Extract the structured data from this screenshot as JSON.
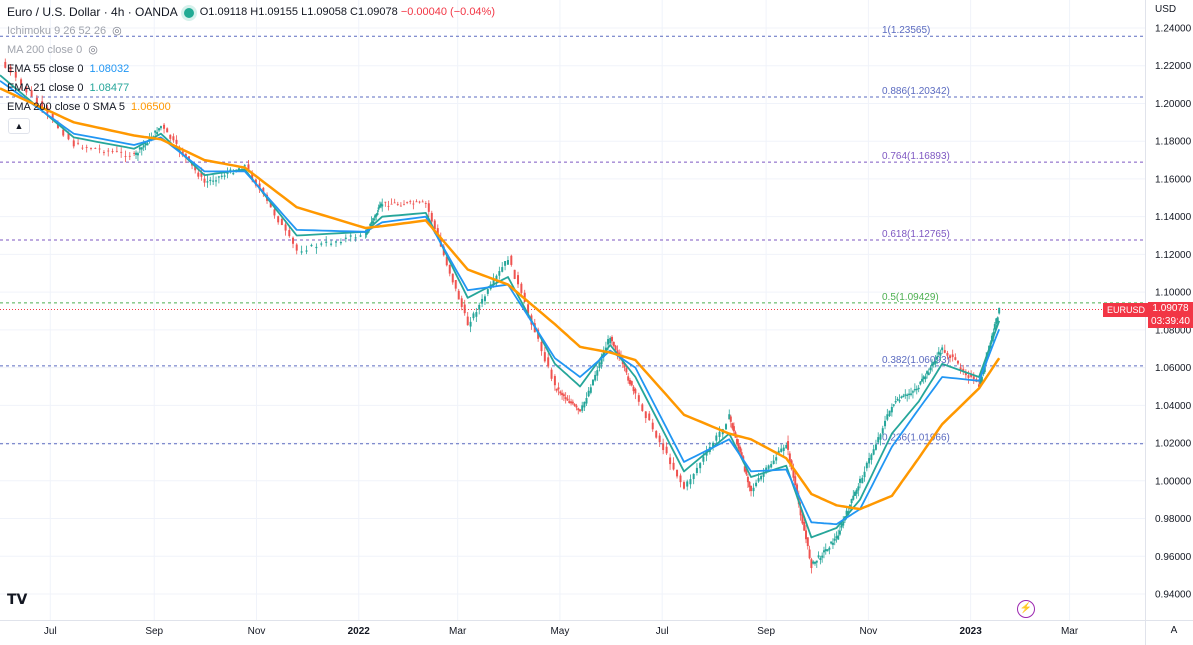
{
  "header": {
    "symbol_title": "Euro / U.S. Dollar · 4h · OANDA",
    "open": "O1.09118",
    "high": "H1.09155",
    "low": "L1.09058",
    "close": "C1.09078",
    "change": "−0.00040 (−0.04%)"
  },
  "indicators": [
    {
      "label": "Ichimoku 9 26 52 26",
      "value": "",
      "hidden": true
    },
    {
      "label": "MA 200 close 0",
      "value": "",
      "hidden": true
    },
    {
      "label": "EMA 55 close 0",
      "value": "1.08032",
      "color": "#2196f3"
    },
    {
      "label": "EMA 21 close 0",
      "value": "1.08477",
      "color": "#26a69a"
    },
    {
      "label": "EMA 200 close 0 SMA 5",
      "value": "1.06500",
      "color": "#ff9800"
    }
  ],
  "price_axis": {
    "currency": "USD",
    "ticks": [
      "1.24000",
      "1.22000",
      "1.20000",
      "1.18000",
      "1.16000",
      "1.14000",
      "1.12000",
      "1.10000",
      "1.08000",
      "1.06000",
      "1.04000",
      "1.02000",
      "1.00000",
      "0.98000",
      "0.96000",
      "0.94000"
    ]
  },
  "time_axis": {
    "labels": [
      "Jul",
      "Sep",
      "Nov",
      "2022",
      "Mar",
      "May",
      "Jul",
      "Sep",
      "Nov",
      "2023",
      "Mar"
    ]
  },
  "current_price": {
    "symbol": "EURUSD",
    "price": "1.09078",
    "countdown": "03:39:40",
    "color": "#f23645"
  },
  "fib_levels": [
    {
      "label": "1(1.23565)",
      "price": 1.23565,
      "color": "#5b6bc0"
    },
    {
      "label": "0.886(1.20342)",
      "price": 1.20342,
      "color": "#5b6bc0"
    },
    {
      "label": "0.764(1.16893)",
      "price": 1.16893,
      "color": "#7e57c2"
    },
    {
      "label": "0.618(1.12765)",
      "price": 1.12765,
      "color": "#7e57c2"
    },
    {
      "label": "0.5(1.09429)",
      "price": 1.09429,
      "color": "#4caf50"
    },
    {
      "label": "0.382(1.06093)",
      "price": 1.06093,
      "color": "#5b6bc0"
    },
    {
      "label": "0.236(1.01966)",
      "price": 1.01966,
      "color": "#5b6bc0"
    }
  ],
  "chart_data": {
    "type": "line",
    "ylim": [
      0.93,
      1.25
    ],
    "x": [
      "2021-06-01",
      "2021-07-15",
      "2021-08-20",
      "2021-09-05",
      "2021-10-01",
      "2021-10-25",
      "2021-11-25",
      "2022-01-05",
      "2022-01-15",
      "2022-02-10",
      "2022-03-07",
      "2022-03-31",
      "2022-04-28",
      "2022-05-13",
      "2022-05-31",
      "2022-06-15",
      "2022-07-14",
      "2022-08-10",
      "2022-08-23",
      "2022-09-13",
      "2022-09-28",
      "2022-10-13",
      "2022-10-27",
      "2022-11-15",
      "2022-12-01",
      "2022-12-15",
      "2023-01-06",
      "2023-01-18"
    ],
    "series": [
      {
        "name": "EURUSD",
        "color": "#26a69a",
        "values": [
          1.222,
          1.178,
          1.172,
          1.188,
          1.158,
          1.167,
          1.122,
          1.131,
          1.147,
          1.147,
          1.083,
          1.118,
          1.05,
          1.036,
          1.077,
          1.045,
          0.996,
          1.034,
          0.995,
          1.02,
          0.955,
          0.97,
          1.0,
          1.04,
          1.05,
          1.07,
          1.05,
          1.0908
        ]
      },
      {
        "name": "EMA 21 close 0",
        "color": "#26a69a",
        "values": [
          1.215,
          1.182,
          1.176,
          1.184,
          1.162,
          1.165,
          1.13,
          1.132,
          1.14,
          1.142,
          1.097,
          1.108,
          1.062,
          1.05,
          1.072,
          1.055,
          1.005,
          1.025,
          1.002,
          1.008,
          0.97,
          0.975,
          0.99,
          1.025,
          1.042,
          1.062,
          1.055,
          1.08477
        ]
      },
      {
        "name": "EMA 55 close 0",
        "color": "#2196f3",
        "values": [
          1.212,
          1.184,
          1.178,
          1.182,
          1.164,
          1.164,
          1.133,
          1.132,
          1.137,
          1.14,
          1.101,
          1.104,
          1.065,
          1.055,
          1.069,
          1.06,
          1.01,
          1.022,
          1.005,
          1.006,
          0.978,
          0.977,
          0.985,
          1.018,
          1.038,
          1.055,
          1.053,
          1.08032
        ]
      },
      {
        "name": "EMA 200 close 0 SMA 5",
        "color": "#ff9800",
        "values": [
          1.208,
          1.19,
          1.183,
          1.181,
          1.17,
          1.166,
          1.145,
          1.134,
          1.135,
          1.138,
          1.112,
          1.104,
          1.083,
          1.071,
          1.068,
          1.064,
          1.035,
          1.025,
          1.022,
          1.012,
          0.993,
          0.987,
          0.985,
          0.992,
          1.012,
          1.03,
          1.049,
          1.065
        ]
      }
    ]
  }
}
